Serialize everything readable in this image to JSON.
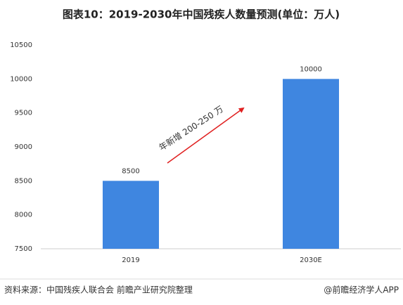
{
  "chart_data": {
    "type": "bar",
    "title": "图表10：2019-2030年中国残疾人数量预测(单位：万人)",
    "categories": [
      "2019",
      "2030E"
    ],
    "values": [
      8500,
      10000
    ],
    "color": "#3f86e0",
    "ylim": [
      7500,
      10500
    ],
    "yticks": [
      7500,
      8000,
      8500,
      9000,
      9500,
      10000,
      10500
    ],
    "grid": false,
    "annotation": "年新增  200-250  万",
    "annotation_color": "#e02020",
    "source": "资料来源：中国残疾人联合会 前瞻产业研究院整理",
    "credit": "@前瞻经济学人APP"
  }
}
